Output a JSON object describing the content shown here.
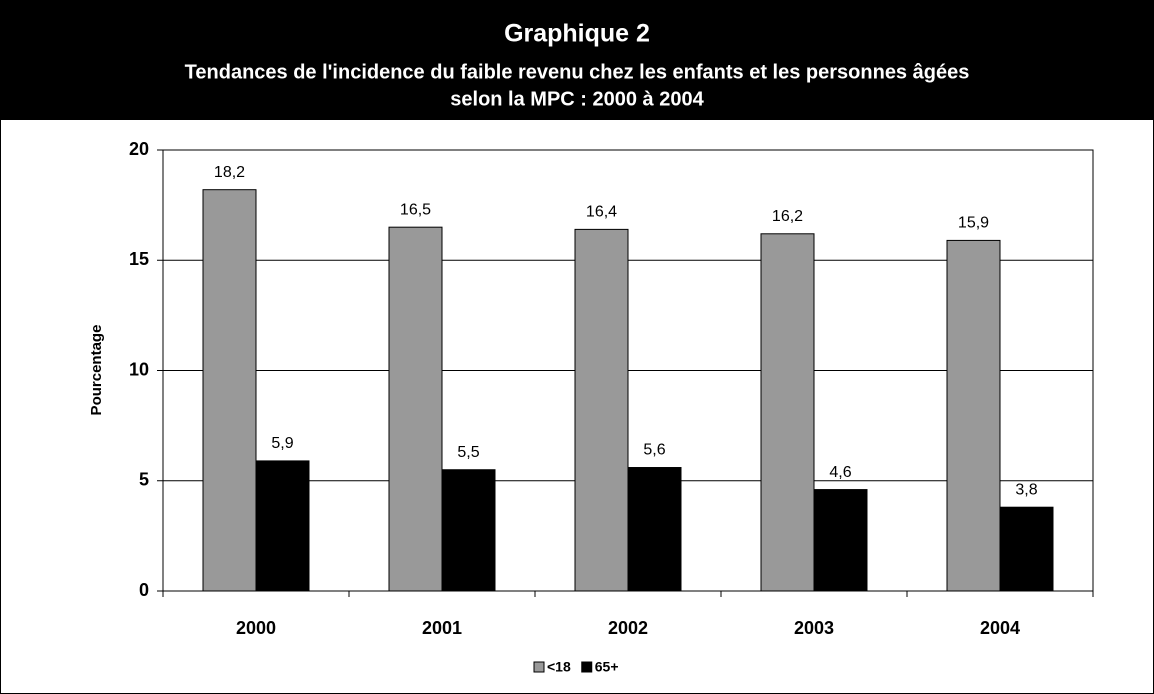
{
  "chart_data": {
    "type": "bar",
    "title": "Graphique 2",
    "subtitle": [
      "Tendances de l'incidence du faible revenu chez les enfants et les personnes âgées",
      "selon la MPC : 2000 à 2004"
    ],
    "y_label": "Pourcentage",
    "categories": [
      "2000",
      "2001",
      "2002",
      "2003",
      "2004"
    ],
    "series": [
      {
        "name": "<18",
        "color": "#999999",
        "values": [
          18.2,
          16.5,
          16.4,
          16.2,
          15.9
        ],
        "value_labels": [
          "18,2",
          "16,5",
          "16,4",
          "16,2",
          "15,9"
        ]
      },
      {
        "name": "65+",
        "color": "#000000",
        "values": [
          5.9,
          5.5,
          5.6,
          4.6,
          3.8
        ],
        "value_labels": [
          "5,9",
          "5,5",
          "5,6",
          "4,6",
          "3,8"
        ]
      }
    ],
    "ylim": [
      0,
      20
    ],
    "yticks": [
      0,
      5,
      10,
      15,
      20
    ],
    "grid": true,
    "legend": "bottom"
  }
}
